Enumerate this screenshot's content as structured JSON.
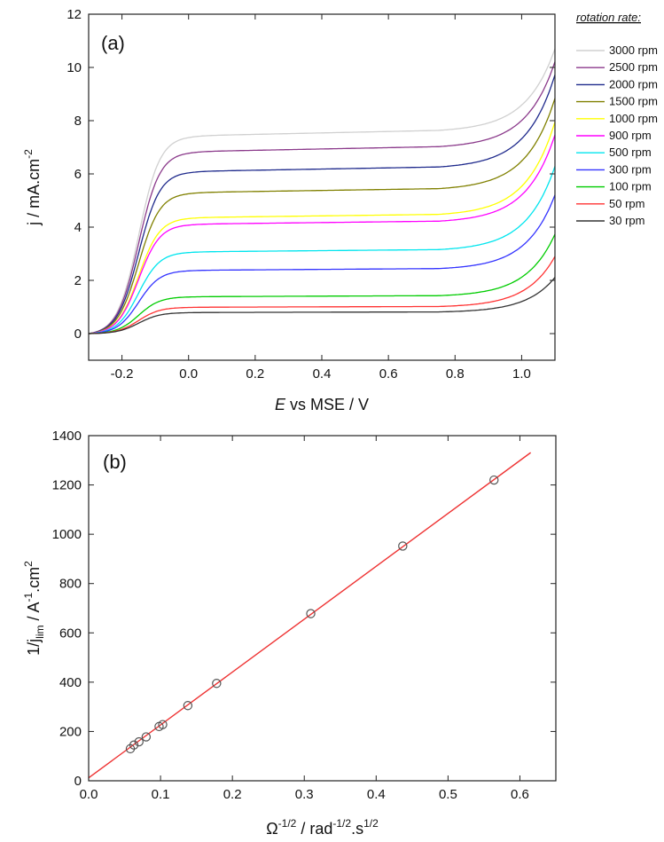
{
  "chart_data": [
    {
      "panel": "(a)",
      "type": "line",
      "xlabel_italic": "E",
      "xlabel_rest": " vs MSE / V",
      "ylabel_main": "j / mA.cm",
      "ylabel_sup": "-2",
      "xlim": [
        -0.3,
        1.1
      ],
      "ylim": [
        -1,
        12
      ],
      "xticks": [
        -0.2,
        0.0,
        0.2,
        0.4,
        0.6,
        0.8,
        1.0
      ],
      "xtick_labels": [
        "-0.2",
        "0.0",
        "0.2",
        "0.4",
        "0.6",
        "0.8",
        "1.0"
      ],
      "yticks": [
        0,
        2,
        4,
        6,
        8,
        10,
        12
      ],
      "ytick_labels": [
        "0",
        "2",
        "4",
        "6",
        "8",
        "10",
        "12"
      ],
      "legend_title": "rotation rate:",
      "legend_position": "outside-top-right",
      "series": [
        {
          "name": "3000 rpm",
          "color": "#d0d0d0",
          "plateau": 7.5,
          "end": 10.9
        },
        {
          "name": "2500 rpm",
          "color": "#8b3a8b",
          "plateau": 6.9,
          "end": 10.4
        },
        {
          "name": "2000 rpm",
          "color": "#1f2a8c",
          "plateau": 6.15,
          "end": 9.9
        },
        {
          "name": "1500 rpm",
          "color": "#808000",
          "plateau": 5.35,
          "end": 9.0
        },
        {
          "name": "1000 rpm",
          "color": "#ffff00",
          "plateau": 4.4,
          "end": 8.1
        },
        {
          "name": "900 rpm",
          "color": "#ff00ff",
          "plateau": 4.15,
          "end": 7.6
        },
        {
          "name": "500 rpm",
          "color": "#00e5ee",
          "plateau": 3.1,
          "end": 6.4
        },
        {
          "name": "300 rpm",
          "color": "#3333ff",
          "plateau": 2.4,
          "end": 5.3
        },
        {
          "name": "100 rpm",
          "color": "#00cc00",
          "plateau": 1.4,
          "end": 3.8
        },
        {
          "name": "50 rpm",
          "color": "#ff3333",
          "plateau": 1.0,
          "end": 2.95
        },
        {
          "name": "30 rpm",
          "color": "#333333",
          "plateau": 0.8,
          "end": 2.15
        }
      ]
    },
    {
      "panel": "(b)",
      "type": "scatter",
      "xlabel_main": "Ω",
      "xlabel_sup1": "-1/2",
      "xlabel_mid": " / rad",
      "xlabel_sup2": "-1/2",
      "xlabel_mid2": ".s",
      "xlabel_sup3": "1/2",
      "ylabel_main": "1/j",
      "ylabel_sub": "lim",
      "ylabel_mid": " / A",
      "ylabel_sup1": "-1",
      "ylabel_mid2": ".cm",
      "ylabel_sup2": "2",
      "xlim": [
        0.0,
        0.65
      ],
      "ylim": [
        0,
        1400
      ],
      "xticks": [
        0.0,
        0.1,
        0.2,
        0.3,
        0.4,
        0.5,
        0.6
      ],
      "xtick_labels": [
        "0.0",
        "0.1",
        "0.2",
        "0.3",
        "0.4",
        "0.5",
        "0.6"
      ],
      "yticks": [
        0,
        200,
        400,
        600,
        800,
        1000,
        1200,
        1400
      ],
      "ytick_labels": [
        "0",
        "200",
        "400",
        "600",
        "800",
        "1000",
        "1200",
        "1400"
      ],
      "points": [
        {
          "x": 0.058,
          "y": 130
        },
        {
          "x": 0.063,
          "y": 145
        },
        {
          "x": 0.07,
          "y": 158
        },
        {
          "x": 0.08,
          "y": 178
        },
        {
          "x": 0.098,
          "y": 220
        },
        {
          "x": 0.103,
          "y": 228
        },
        {
          "x": 0.138,
          "y": 305
        },
        {
          "x": 0.178,
          "y": 395
        },
        {
          "x": 0.309,
          "y": 678
        },
        {
          "x": 0.437,
          "y": 952
        },
        {
          "x": 0.564,
          "y": 1220
        }
      ],
      "fit_line": {
        "color": "#ee3333",
        "x_start": 0.0,
        "x_end": 0.615,
        "intercept": 12,
        "slope": 2145
      },
      "marker_color": "#555555"
    }
  ]
}
